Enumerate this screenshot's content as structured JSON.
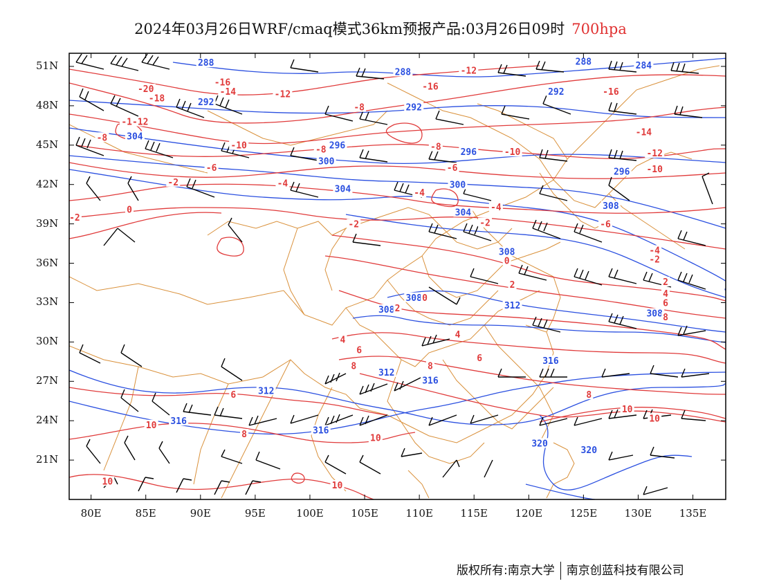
{
  "title": {
    "main": "2024年03月26日WRF/cmaq模式36km预报产品:03月26日09时",
    "level": "700hpa"
  },
  "colors": {
    "height_contour": "#2a4fe0",
    "temperature_contour": "#e03a3a",
    "boundary": "#d9903a",
    "wind_barb": "#000000",
    "level_text": "#e03030"
  },
  "axes": {
    "lon_labels": [
      "80E",
      "85E",
      "90E",
      "95E",
      "100E",
      "105E",
      "110E",
      "115E",
      "120E",
      "125E",
      "130E",
      "135E"
    ],
    "lat_labels": [
      "51N",
      "48N",
      "45N",
      "42N",
      "39N",
      "36N",
      "33N",
      "30N",
      "27N",
      "24N",
      "21N"
    ],
    "lon_range": [
      78,
      138
    ],
    "lat_range": [
      18,
      52
    ]
  },
  "height_labels": [
    {
      "text": "288",
      "lon": 90.5,
      "lat": 51.2
    },
    {
      "text": "288",
      "lon": 108.5,
      "lat": 50.5
    },
    {
      "text": "288",
      "lon": 125.0,
      "lat": 51.3
    },
    {
      "text": "284",
      "lon": 130.5,
      "lat": 51.0
    },
    {
      "text": "292",
      "lon": 90.5,
      "lat": 48.2
    },
    {
      "text": "292",
      "lon": 109.5,
      "lat": 47.8
    },
    {
      "text": "292",
      "lon": 122.5,
      "lat": 49.0
    },
    {
      "text": "304",
      "lon": 84.0,
      "lat": 45.6
    },
    {
      "text": "296",
      "lon": 102.5,
      "lat": 44.9
    },
    {
      "text": "300",
      "lon": 101.5,
      "lat": 43.7
    },
    {
      "text": "296",
      "lon": 114.5,
      "lat": 44.4
    },
    {
      "text": "296",
      "lon": 128.5,
      "lat": 42.9
    },
    {
      "text": "304",
      "lon": 103.0,
      "lat": 41.6
    },
    {
      "text": "300",
      "lon": 113.5,
      "lat": 41.9
    },
    {
      "text": "304",
      "lon": 114.0,
      "lat": 39.8
    },
    {
      "text": "308",
      "lon": 127.5,
      "lat": 40.3
    },
    {
      "text": "308",
      "lon": 118.0,
      "lat": 36.8
    },
    {
      "text": "308",
      "lon": 109.5,
      "lat": 33.3
    },
    {
      "text": "308",
      "lon": 107.0,
      "lat": 32.4
    },
    {
      "text": "312",
      "lon": 118.5,
      "lat": 32.7
    },
    {
      "text": "308",
      "lon": 131.5,
      "lat": 32.1
    },
    {
      "text": "316",
      "lon": 122.0,
      "lat": 28.5
    },
    {
      "text": "312",
      "lon": 96.0,
      "lat": 26.2
    },
    {
      "text": "312",
      "lon": 107.0,
      "lat": 27.6
    },
    {
      "text": "316",
      "lon": 111.0,
      "lat": 27.0
    },
    {
      "text": "316",
      "lon": 88.0,
      "lat": 23.9
    },
    {
      "text": "316",
      "lon": 101.0,
      "lat": 23.2
    },
    {
      "text": "320",
      "lon": 121.0,
      "lat": 22.2
    },
    {
      "text": "320",
      "lon": 125.5,
      "lat": 21.7
    }
  ],
  "temperature_labels": [
    {
      "text": "-12",
      "lon": 114.5,
      "lat": 50.6
    },
    {
      "text": "-16",
      "lon": 92.0,
      "lat": 49.7
    },
    {
      "text": "-16",
      "lon": 111.0,
      "lat": 49.4
    },
    {
      "text": "-14",
      "lon": 92.5,
      "lat": 49.0
    },
    {
      "text": "-12",
      "lon": 97.5,
      "lat": 48.8
    },
    {
      "text": "-20",
      "lon": 85.0,
      "lat": 49.2
    },
    {
      "text": "-18",
      "lon": 86.0,
      "lat": 48.5
    },
    {
      "text": "-16",
      "lon": 127.5,
      "lat": 49.0
    },
    {
      "text": "-8",
      "lon": 104.5,
      "lat": 47.8
    },
    {
      "text": "-1-12",
      "lon": 84.0,
      "lat": 46.7
    },
    {
      "text": "-8",
      "lon": 81.0,
      "lat": 45.5
    },
    {
      "text": "-14",
      "lon": 130.5,
      "lat": 45.9
    },
    {
      "text": "-10",
      "lon": 93.5,
      "lat": 44.9
    },
    {
      "text": "-8",
      "lon": 101.0,
      "lat": 44.6
    },
    {
      "text": "-8",
      "lon": 111.5,
      "lat": 44.8
    },
    {
      "text": "-10",
      "lon": 118.5,
      "lat": 44.4
    },
    {
      "text": "-12",
      "lon": 131.5,
      "lat": 44.3
    },
    {
      "text": "-6",
      "lon": 91.0,
      "lat": 43.2
    },
    {
      "text": "-6",
      "lon": 113.0,
      "lat": 43.2
    },
    {
      "text": "-10",
      "lon": 131.5,
      "lat": 43.1
    },
    {
      "text": "-2",
      "lon": 87.5,
      "lat": 42.1
    },
    {
      "text": "-4",
      "lon": 97.5,
      "lat": 42.0
    },
    {
      "text": "-4",
      "lon": 110.0,
      "lat": 41.3
    },
    {
      "text": "-4",
      "lon": 117.0,
      "lat": 40.2
    },
    {
      "text": "0",
      "lon": 83.5,
      "lat": 40.0
    },
    {
      "text": "-2",
      "lon": 78.5,
      "lat": 39.4
    },
    {
      "text": "-2",
      "lon": 104.0,
      "lat": 38.9
    },
    {
      "text": "-2",
      "lon": 116.0,
      "lat": 39.0
    },
    {
      "text": "-6",
      "lon": 127.0,
      "lat": 38.9
    },
    {
      "text": "-4",
      "lon": 131.5,
      "lat": 36.9
    },
    {
      "text": "-2",
      "lon": 131.5,
      "lat": 36.2
    },
    {
      "text": "0",
      "lon": 118.0,
      "lat": 36.1
    },
    {
      "text": "2",
      "lon": 118.5,
      "lat": 34.3
    },
    {
      "text": "2",
      "lon": 132.5,
      "lat": 34.5
    },
    {
      "text": "4",
      "lon": 132.5,
      "lat": 33.6
    },
    {
      "text": "6",
      "lon": 132.5,
      "lat": 32.9
    },
    {
      "text": "0",
      "lon": 110.5,
      "lat": 33.3
    },
    {
      "text": "2",
      "lon": 108.0,
      "lat": 32.5
    },
    {
      "text": "8",
      "lon": 132.5,
      "lat": 31.8
    },
    {
      "text": "4",
      "lon": 103.0,
      "lat": 30.1
    },
    {
      "text": "4",
      "lon": 113.5,
      "lat": 30.5
    },
    {
      "text": "6",
      "lon": 104.5,
      "lat": 29.3
    },
    {
      "text": "6",
      "lon": 115.5,
      "lat": 28.7
    },
    {
      "text": "8",
      "lon": 104.0,
      "lat": 28.1
    },
    {
      "text": "8",
      "lon": 111.0,
      "lat": 28.1
    },
    {
      "text": "6",
      "lon": 93.0,
      "lat": 25.9
    },
    {
      "text": "8",
      "lon": 125.5,
      "lat": 25.9
    },
    {
      "text": "10",
      "lon": 129.0,
      "lat": 24.8
    },
    {
      "text": "10",
      "lon": 85.5,
      "lat": 23.6
    },
    {
      "text": "8",
      "lon": 94.0,
      "lat": 22.9
    },
    {
      "text": "10",
      "lon": 106.0,
      "lat": 22.6
    },
    {
      "text": "10",
      "lon": 131.5,
      "lat": 24.1
    },
    {
      "text": "10",
      "lon": 81.5,
      "lat": 19.3
    },
    {
      "text": "10",
      "lon": 102.5,
      "lat": 19.0
    }
  ],
  "credit": {
    "left": "版权所有:南京大学",
    "right": "南京创蓝科技有限公司"
  }
}
